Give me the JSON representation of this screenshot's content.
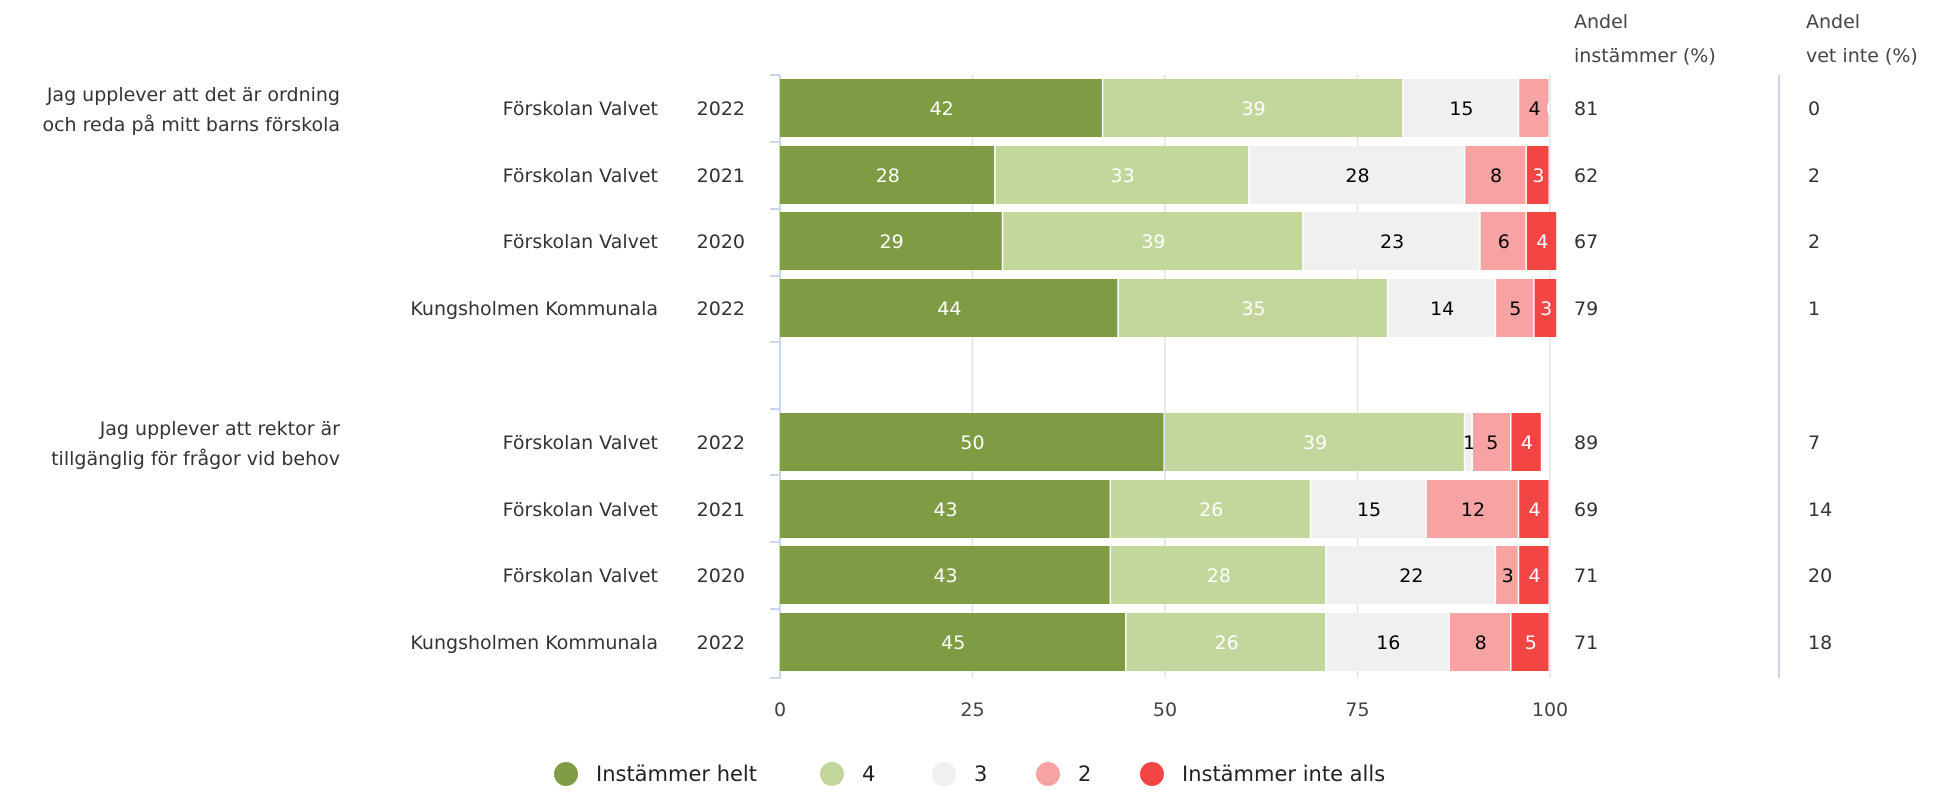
{
  "chart_data": {
    "type": "bar",
    "orientation": "horizontal-stacked",
    "xlim": [
      0,
      100
    ],
    "x_ticks": [
      "0",
      "25",
      "50",
      "75",
      "100"
    ],
    "grid": true,
    "legend_position": "bottom",
    "segments": [
      {
        "name": "Instämmer helt",
        "color": "#7f9c45",
        "text_color": "#ffffff"
      },
      {
        "name": "4",
        "color": "#c3d79c",
        "text_color": "#ffffff"
      },
      {
        "name": "3",
        "color": "#f0f0f0",
        "text_color": "#000000"
      },
      {
        "name": "2",
        "color": "#f7a3a3",
        "text_color": "#000000"
      },
      {
        "name": "Instämmer inte alls",
        "color": "#f44545",
        "text_color": "#ffffff"
      }
    ],
    "column_headers": [
      [
        "Andel",
        "instämmer (%)"
      ],
      [
        "Andel",
        "vet inte (%)"
      ]
    ],
    "groups": [
      {
        "question": [
          "Jag upplever att det är ordning",
          "och reda på mitt barns förskola"
        ],
        "rows": [
          {
            "unit": "Förskolan Valvet",
            "year": "2022",
            "values": [
              42,
              39,
              15,
              4,
              0
            ],
            "labels": [
              "42",
              "39",
              "15",
              "4",
              "0"
            ],
            "agree": "81",
            "dont_know": "0"
          },
          {
            "unit": "Förskolan Valvet",
            "year": "2021",
            "values": [
              28,
              33,
              28,
              8,
              3
            ],
            "labels": [
              "28",
              "33",
              "28",
              "8",
              "3"
            ],
            "agree": "62",
            "dont_know": "2"
          },
          {
            "unit": "Förskolan Valvet",
            "year": "2020",
            "values": [
              29,
              39,
              23,
              6,
              4
            ],
            "labels": [
              "29",
              "39",
              "23",
              "6",
              "4"
            ],
            "agree": "67",
            "dont_know": "2"
          },
          {
            "unit": "Kungsholmen Kommunala",
            "year": "2022",
            "values": [
              44,
              35,
              14,
              5,
              3
            ],
            "labels": [
              "44",
              "35",
              "14",
              "5",
              "3"
            ],
            "agree": "79",
            "dont_know": "1"
          }
        ]
      },
      {
        "question": [
          "Jag upplever att rektor är",
          "tillgänglig för frågor vid behov"
        ],
        "rows": [
          {
            "unit": "Förskolan Valvet",
            "year": "2022",
            "values": [
              50,
              39,
              1,
              5,
              4
            ],
            "labels": [
              "50",
              "39",
              "1",
              "5",
              "4"
            ],
            "agree": "89",
            "dont_know": "7"
          },
          {
            "unit": "Förskolan Valvet",
            "year": "2021",
            "values": [
              43,
              26,
              15,
              12,
              4
            ],
            "labels": [
              "43",
              "26",
              "15",
              "12",
              "4"
            ],
            "agree": "69",
            "dont_know": "14"
          },
          {
            "unit": "Förskolan Valvet",
            "year": "2020",
            "values": [
              43,
              28,
              22,
              3,
              4
            ],
            "labels": [
              "43",
              "28",
              "22",
              "3",
              "4"
            ],
            "agree": "71",
            "dont_know": "20"
          },
          {
            "unit": "Kungsholmen Kommunala",
            "year": "2022",
            "values": [
              45,
              26,
              16,
              8,
              5
            ],
            "labels": [
              "45",
              "26",
              "16",
              "8",
              "5"
            ],
            "agree": "71",
            "dont_know": "18"
          }
        ]
      }
    ]
  }
}
